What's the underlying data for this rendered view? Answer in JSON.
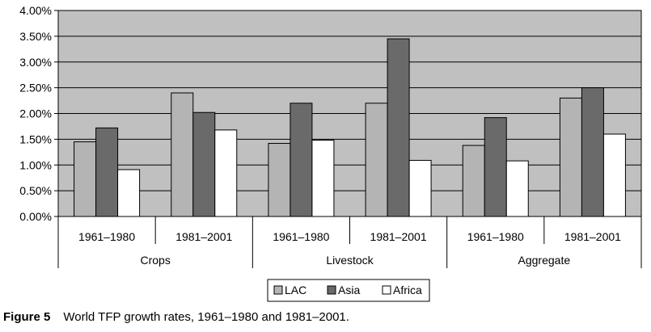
{
  "chart_data": {
    "type": "bar",
    "groups": [
      "Crops",
      "Livestock",
      "Aggregate"
    ],
    "categories": [
      "1961–1980",
      "1981–2001",
      "1961–1980",
      "1981–2001",
      "1961–1980",
      "1981–2001"
    ],
    "series": [
      {
        "name": "LAC",
        "color": "#b4b4b4",
        "values": [
          1.45,
          2.4,
          1.42,
          2.2,
          1.38,
          2.3
        ]
      },
      {
        "name": "Asia",
        "color": "#6a6a6a",
        "values": [
          1.72,
          2.02,
          2.2,
          3.45,
          1.92,
          2.5
        ]
      },
      {
        "name": "Africa",
        "color": "#ffffff",
        "values": [
          0.91,
          1.68,
          1.48,
          1.09,
          1.08,
          1.6
        ]
      }
    ],
    "yticks": [
      "0.00%",
      "0.50%",
      "1.00%",
      "1.50%",
      "2.00%",
      "2.50%",
      "3.00%",
      "3.50%",
      "4.00%"
    ],
    "ylim": [
      0,
      4
    ],
    "grid": true,
    "legend_position": "bottom"
  },
  "caption": {
    "label": "Figure 5",
    "text": "World TFP growth rates, 1961–1980 and 1981–2001."
  }
}
